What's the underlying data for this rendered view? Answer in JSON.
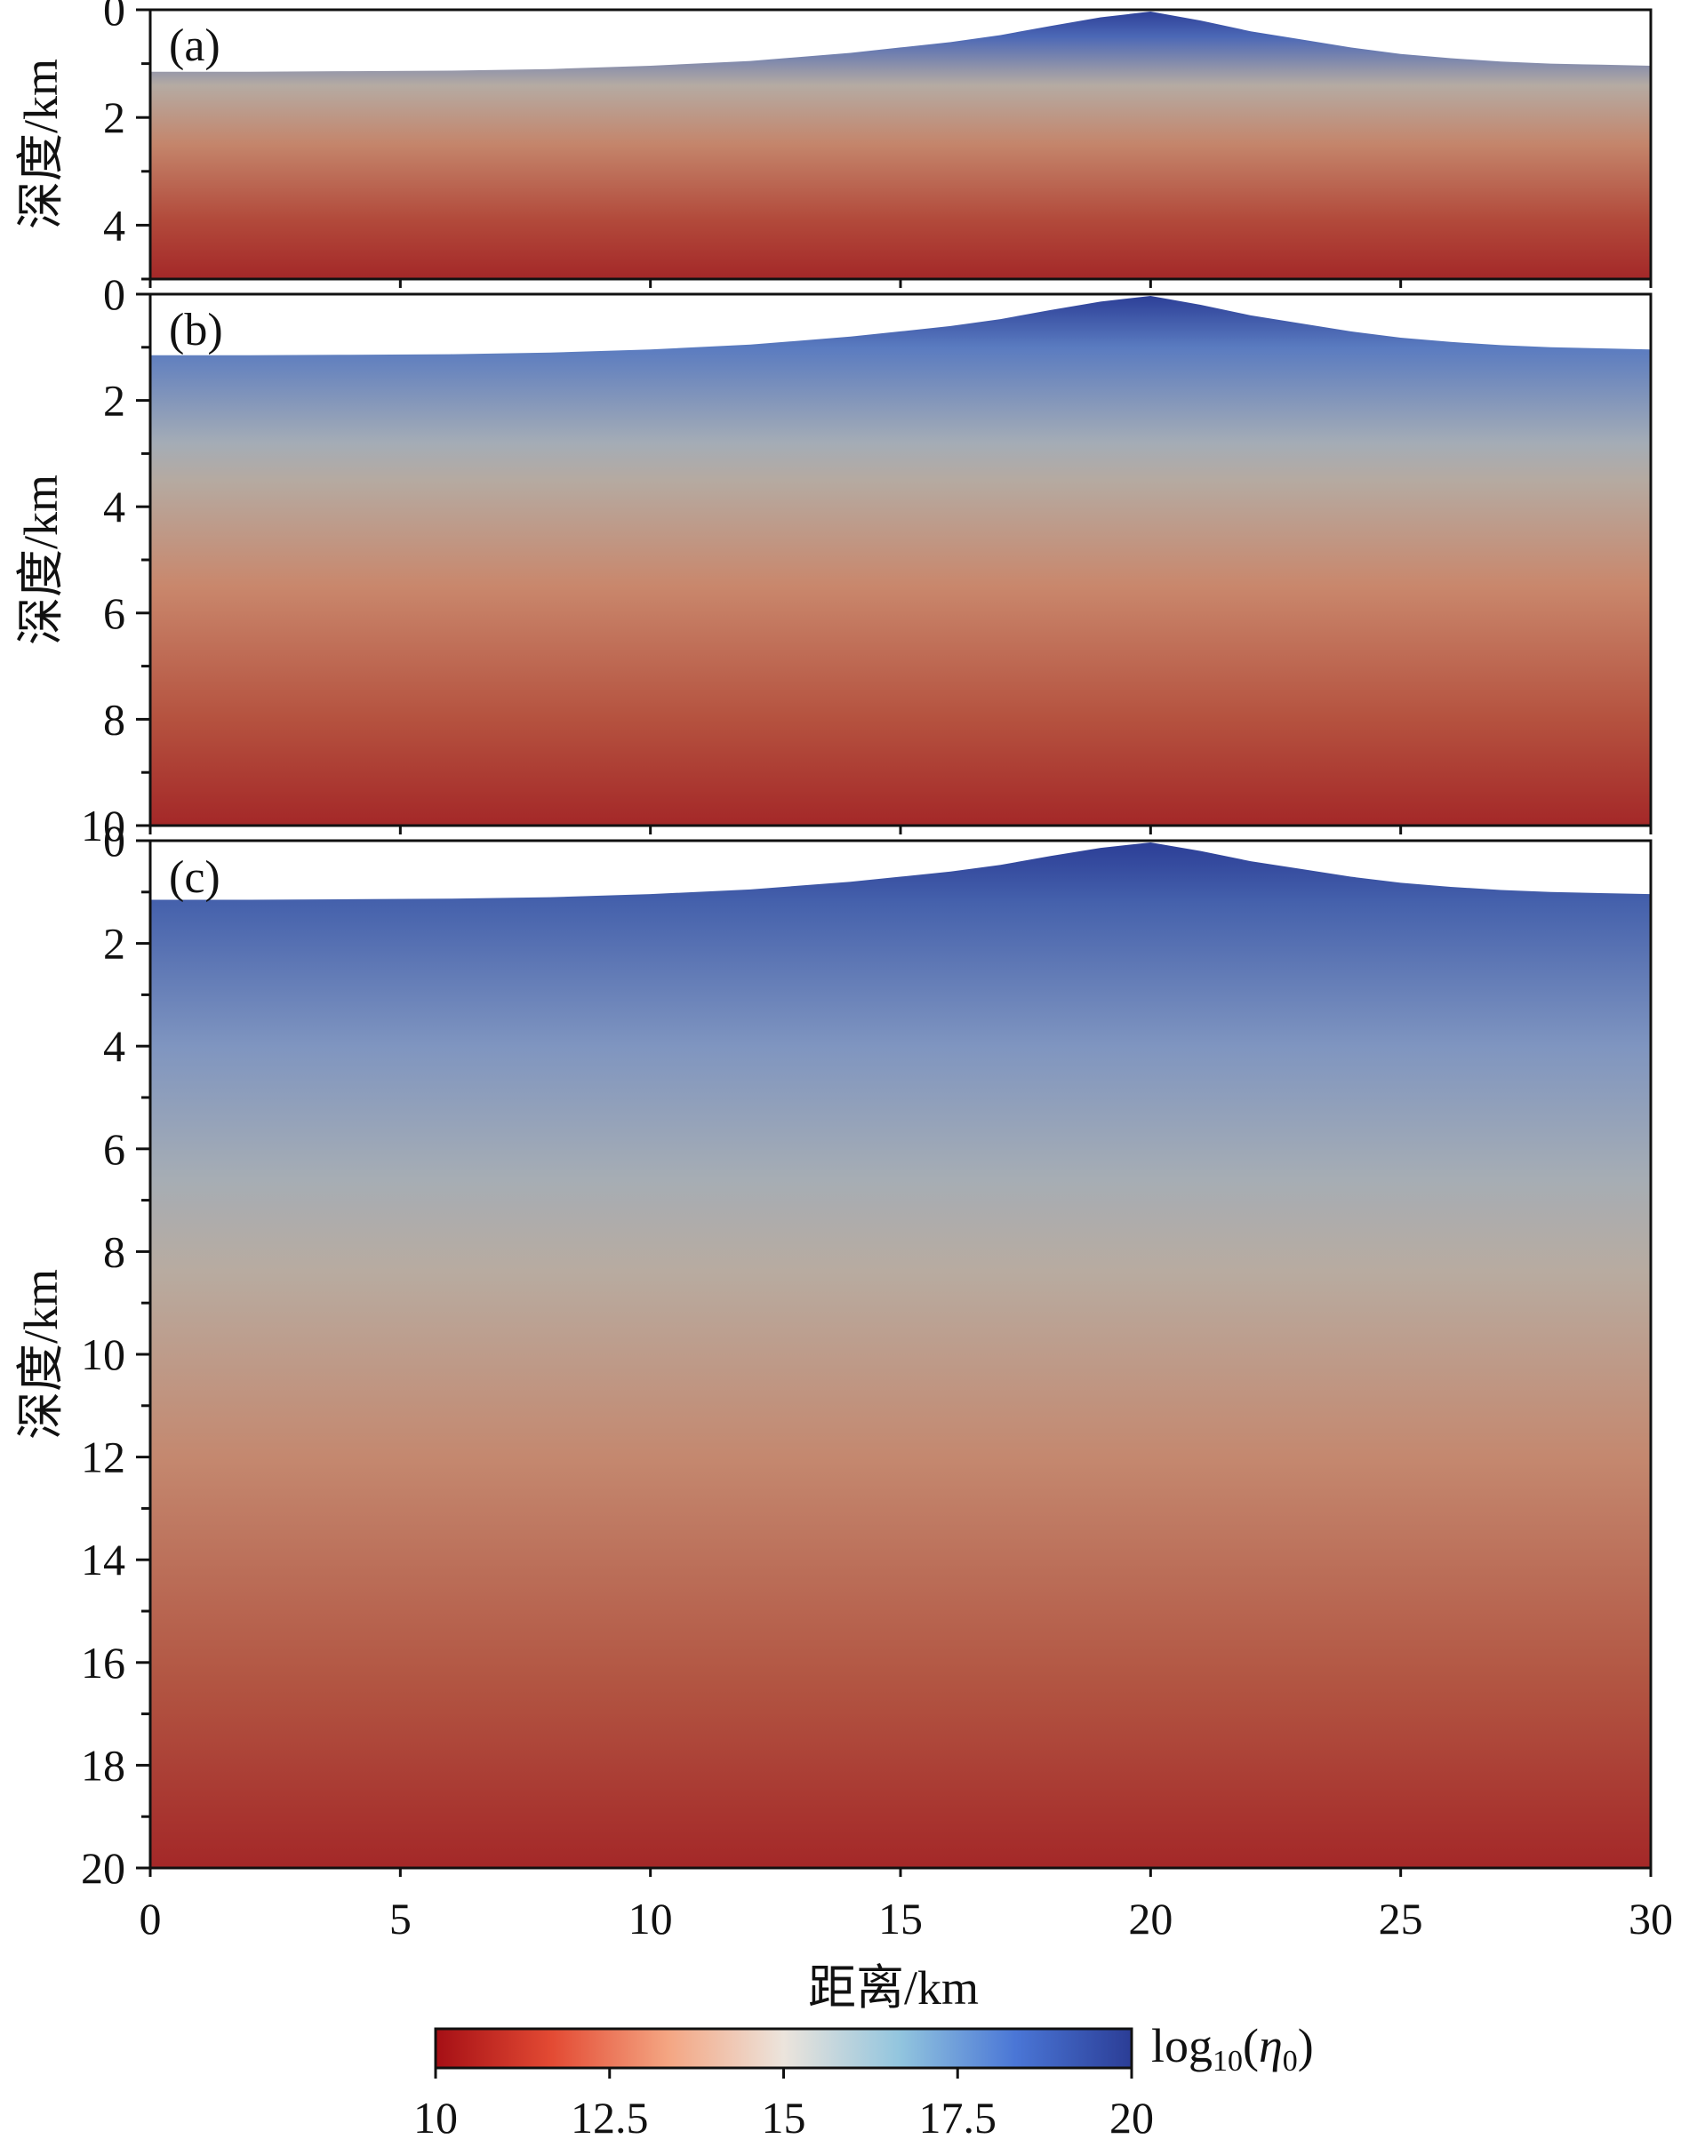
{
  "chart_data": {
    "type": "heatmap",
    "x_axis": {
      "label": "距离/km",
      "ticks": [
        0,
        5,
        10,
        15,
        20,
        25,
        30
      ],
      "range": [
        0,
        30
      ]
    },
    "y_axis_label": "深度/km",
    "panels": [
      {
        "label": "(a)",
        "ylim": [
          0,
          5
        ],
        "yticks": [
          0,
          2,
          4
        ],
        "minor_yticks": [
          1,
          3,
          5
        ],
        "colors": [
          "#2b3d96",
          "#4c68b6",
          "#b5aba3",
          "#c4856b",
          "#b24a3b",
          "#a42828"
        ],
        "color_stops": [
          0,
          0.1,
          0.28,
          0.5,
          0.78,
          1
        ]
      },
      {
        "label": "(b)",
        "ylim": [
          0,
          10
        ],
        "yticks": [
          0,
          2,
          4,
          6,
          8,
          10
        ],
        "minor_yticks": [
          1,
          3,
          5,
          7,
          9
        ],
        "colors": [
          "#2b3d96",
          "#5a7bc0",
          "#a4acb6",
          "#b5aaa1",
          "#c9876c",
          "#b5523f",
          "#a42828"
        ],
        "color_stops": [
          0,
          0.1,
          0.28,
          0.35,
          0.55,
          0.8,
          1
        ]
      },
      {
        "label": "(c)",
        "ylim": [
          0,
          20
        ],
        "yticks": [
          0,
          2,
          4,
          6,
          8,
          10,
          12,
          14,
          16,
          18,
          20
        ],
        "minor_yticks": [
          1,
          3,
          5,
          7,
          9,
          11,
          13,
          15,
          17,
          19
        ],
        "colors": [
          "#2b3d96",
          "#4561ac",
          "#7f95c0",
          "#a6adb4",
          "#b8aba0",
          "#c4886f",
          "#b25542",
          "#a42828"
        ],
        "color_stops": [
          0,
          0.06,
          0.2,
          0.33,
          0.42,
          0.6,
          0.82,
          1
        ]
      }
    ],
    "surface_depth_km": {
      "x": [
        0,
        2,
        4,
        6,
        8,
        10,
        12,
        14,
        15,
        16,
        17,
        18,
        19,
        20,
        21,
        22,
        23,
        24,
        25,
        26,
        27,
        28,
        29,
        30
      ],
      "depth": [
        1.15,
        1.15,
        1.14,
        1.13,
        1.1,
        1.04,
        0.95,
        0.8,
        0.7,
        0.6,
        0.47,
        0.3,
        0.14,
        -0.05,
        0.2,
        0.4,
        0.55,
        0.7,
        0.82,
        0.9,
        0.96,
        1.0,
        1.02,
        1.04
      ]
    },
    "colorbar": {
      "label_base": "log",
      "label_sub": "10",
      "label_paren_open": "(",
      "label_eta": "η",
      "label_eta_sub": "0",
      "label_paren_close": ")",
      "range": [
        10,
        20
      ],
      "ticks": [
        "10",
        "12.5",
        "15",
        "17.5",
        "20"
      ],
      "colors": [
        "#a50f15",
        "#e34a33",
        "#f4a582",
        "#ece4dc",
        "#92c5de",
        "#4a76d6",
        "#2b3d96"
      ]
    }
  }
}
